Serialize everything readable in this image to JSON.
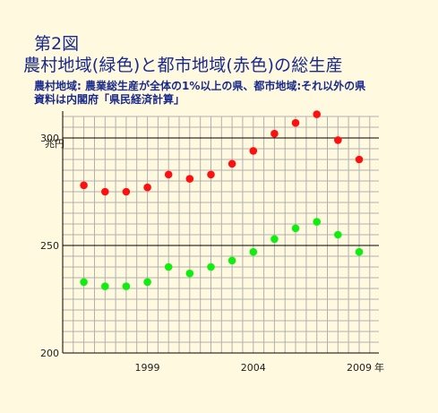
{
  "figure": {
    "number": "第2図",
    "title": "農村地域(緑色)と都市地域(赤色)の総生産",
    "note_line1": "農村地域: 農業総生産が全体の1%以上の県、都市地域:それ以外の県",
    "note_line2": "資料は内閣府「県民経済計算」"
  },
  "colors": {
    "background": "#fffadf",
    "title_text": "#1a2a8c",
    "grid": "#b0b0b0",
    "urban": "#ff1010",
    "rural": "#10ee10"
  },
  "chart_data": {
    "type": "scatter",
    "title": "農村地域(緑色)と都市地域(赤色)の総生産",
    "ylabel": "兆円",
    "xlabel": "年",
    "ylim": [
      200,
      310
    ],
    "xlim": [
      1995,
      2010
    ],
    "y_ticks": [
      200,
      250,
      300
    ],
    "x_tick_labels": [
      {
        "x": 1999,
        "label": "1999"
      },
      {
        "x": 2004,
        "label": "2004"
      },
      {
        "x": 2009,
        "label": "2009"
      }
    ],
    "x_unit_label": "年",
    "grid": true,
    "x": [
      1996,
      1997,
      1998,
      1999,
      2000,
      2001,
      2002,
      2003,
      2004,
      2005,
      2006,
      2007,
      2008,
      2009
    ],
    "series": [
      {
        "color": "#ff1010",
        "values": [
          278,
          275,
          275,
          277,
          283,
          281,
          283,
          288,
          294,
          302,
          307,
          311,
          299,
          290
        ]
      },
      {
        "color": "#10ee10",
        "values": [
          233,
          231,
          231,
          233,
          240,
          237,
          240,
          243,
          247,
          253,
          258,
          261,
          255,
          247
        ]
      }
    ]
  }
}
